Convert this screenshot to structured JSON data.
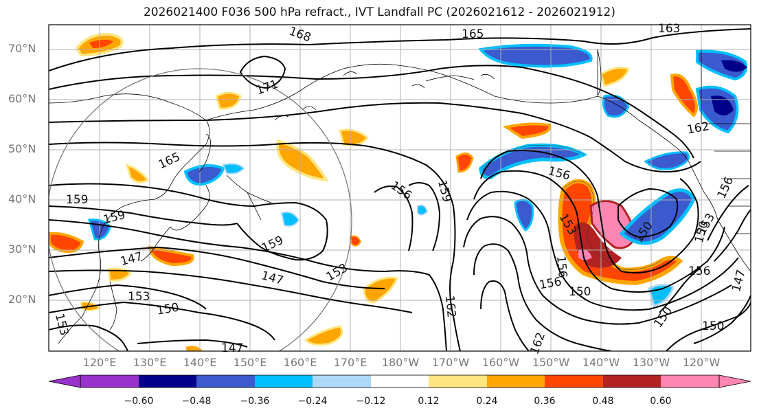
{
  "title": "2026021400 F036 500 hPa refract., IVT Landfall PC (2026021612 - 2026021912)",
  "lat_labels": [
    "70°N",
    "60°N",
    "50°N",
    "40°N",
    "30°N",
    "20°N"
  ],
  "lon_labels": [
    "120°E",
    "130°E",
    "140°E",
    "150°E",
    "160°E",
    "170°E",
    "180°W",
    "170°W",
    "160°W",
    "150°W",
    "140°W",
    "130°W",
    "120°W"
  ],
  "contour_labels": [
    "168",
    "165",
    "163",
    "171",
    "162",
    "165",
    "156",
    "159",
    "156",
    "159",
    "159",
    "153",
    "150",
    "159",
    "147",
    "153",
    "150",
    "147",
    "153",
    "150",
    "156",
    "153",
    "150",
    "156",
    "156",
    "150",
    "162",
    "147",
    "147",
    "153",
    "150",
    "156",
    "162"
  ],
  "colorbar": {
    "ticks": [
      "−0.60",
      "−0.48",
      "−0.36",
      "−0.24",
      "−0.12",
      "0.12",
      "0.24",
      "0.36",
      "0.48",
      "0.60"
    ],
    "colors": [
      "#9932cc",
      "#00008b",
      "#3a5acd",
      "#00bfff",
      "#add8f6",
      "#ffffff",
      "#ffe680",
      "#ffa500",
      "#ff4500",
      "#b22222",
      "#ff85b3"
    ]
  },
  "map_colors": {
    "contour": "#000000",
    "coast": "#000000",
    "grid": "#b0b0b0",
    "circle": "#7a7a7a"
  }
}
